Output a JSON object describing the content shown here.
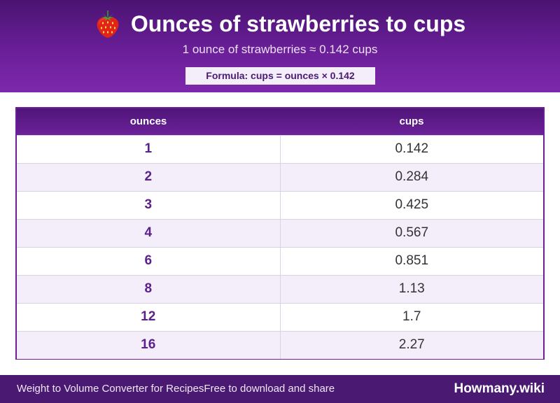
{
  "header": {
    "title": "Ounces of strawberries to cups",
    "subtitle": "1 ounce of strawberries ≈ 0.142 cups",
    "formula": "Formula: cups = ounces × 0.142",
    "icon": "strawberry-icon"
  },
  "table": {
    "headers": [
      "ounces",
      "cups"
    ],
    "rows": [
      {
        "ounces": "1",
        "cups": "0.142"
      },
      {
        "ounces": "2",
        "cups": "0.284"
      },
      {
        "ounces": "3",
        "cups": "0.425"
      },
      {
        "ounces": "4",
        "cups": "0.567"
      },
      {
        "ounces": "6",
        "cups": "0.851"
      },
      {
        "ounces": "8",
        "cups": "1.13"
      },
      {
        "ounces": "12",
        "cups": "1.7"
      },
      {
        "ounces": "16",
        "cups": "2.27"
      }
    ]
  },
  "footer": {
    "left_text_1": "Weight to Volume Converter for Recipes",
    "left_text_2": "Free to download and share",
    "brand": "Howmany.wiki"
  },
  "colors": {
    "primary": "#6a1f98",
    "dark": "#4a1372",
    "row_alt": "#f4eefa"
  }
}
